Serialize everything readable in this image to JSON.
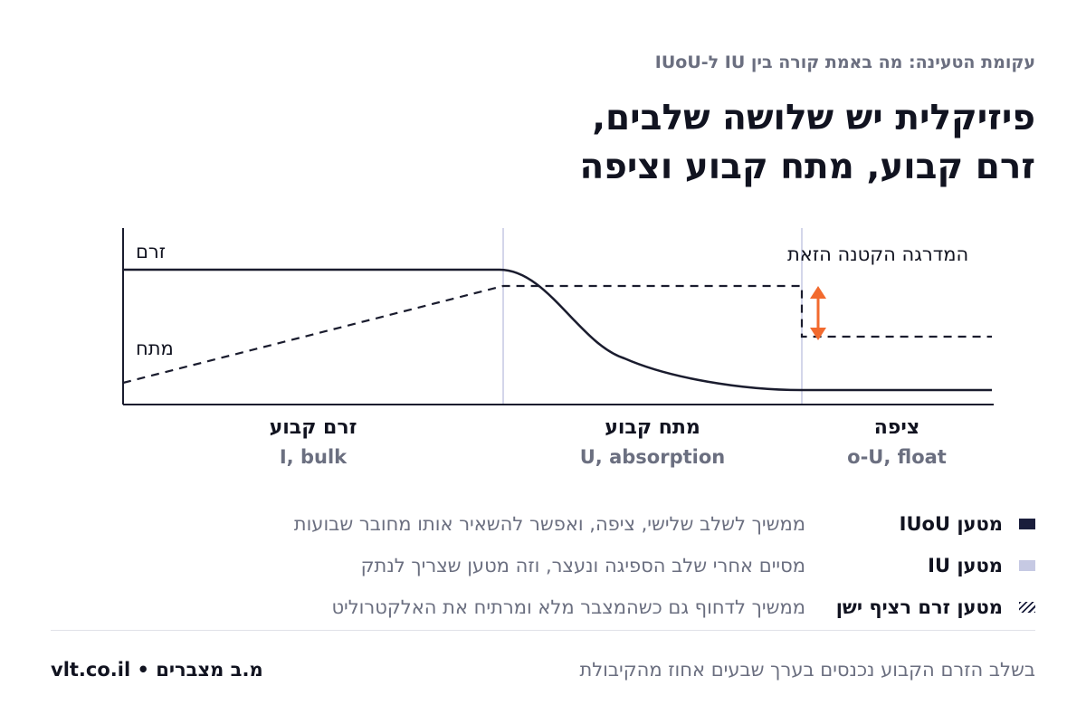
{
  "header": {
    "eyebrow": "עקומת הטעינה: מה באמת קורה בין IU ל-IUoU",
    "title_line1": "פיזיקלית יש שלושה שלבים,",
    "title_line2": "זרם קבוע, מתח קבוע וציפה"
  },
  "chart": {
    "current_label": "זרם",
    "voltage_label": "מתח",
    "step_annotation": "המדרגה הקטנה הזאת",
    "accent_color": "#f26a2e",
    "stages": [
      {
        "he": "זרם קבוע",
        "en": "I, bulk"
      },
      {
        "he": "מתח קבוע",
        "en": "U, absorption"
      },
      {
        "he": "ציפה",
        "en": "o-U, float"
      }
    ]
  },
  "legend": [
    {
      "name": "מטען IUoU",
      "desc": "ממשיך לשלב שלישי, ציפה, ואפשר להשאיר אותו מחובר שבועות",
      "swatch": "solid",
      "color": "#1a1e3c"
    },
    {
      "name": "מטען IU",
      "desc": "מסיים אחרי שלב הספיגה ונעצר, וזה מטען שצריך לנתק",
      "swatch": "light",
      "color": "#c6c9e3"
    },
    {
      "name": "מטען זרם רציף ישן",
      "desc": "ממשיך לדחוף גם כשהמצבר מלא ומרתיח את האלקטרוליט",
      "swatch": "hatch",
      "color": "#1a1e3c"
    }
  ],
  "footer": {
    "note": "בשלב הזרם הקבוע נכנסים בערך שבעים אחוז מהקיבולת",
    "brand": "מ.ב מצברים • vlt.co.il"
  }
}
